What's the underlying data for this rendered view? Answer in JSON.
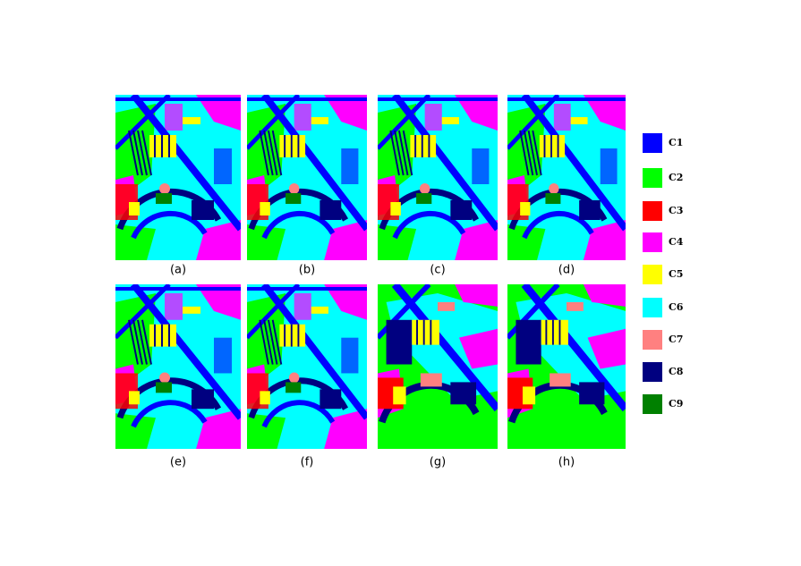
{
  "panels": [
    {
      "label": "(a)"
    },
    {
      "label": "(b)"
    },
    {
      "label": "(c)"
    },
    {
      "label": "(d)"
    },
    {
      "label": "(e)"
    },
    {
      "label": "(f)"
    },
    {
      "label": "(g)"
    },
    {
      "label": "(h)"
    }
  ],
  "legend": [
    {
      "label": "C1",
      "color": "#0000ff"
    },
    {
      "label": "C2",
      "color": "#00ff00"
    },
    {
      "label": "C3",
      "color": "#ff0000"
    },
    {
      "label": "C4",
      "color": "#ff00ff"
    },
    {
      "label": "C5",
      "color": "#ffff00"
    },
    {
      "label": "C6",
      "color": "#00ffff"
    },
    {
      "label": "C7",
      "color": "#ff8080"
    },
    {
      "label": "C8",
      "color": "#000080"
    },
    {
      "label": "C9",
      "color": "#008000"
    }
  ]
}
